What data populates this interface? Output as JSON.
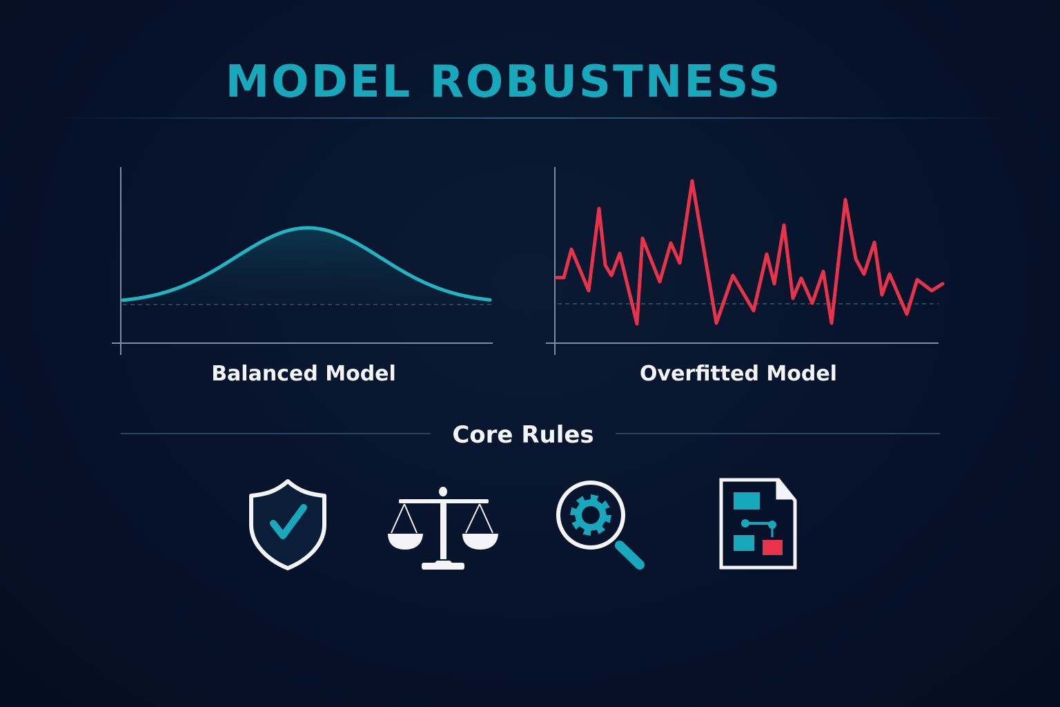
{
  "title": "MODEL ROBUSTNESS",
  "panels": [
    {
      "label": "Balanced Model",
      "curve": "smooth-bell",
      "color": "#1fb5c2"
    },
    {
      "label": "Overfitted Model",
      "curve": "jagged-noise",
      "color": "#e8344a"
    }
  ],
  "section": {
    "title": "Core Rules"
  },
  "icons": [
    {
      "name": "shield-check-icon"
    },
    {
      "name": "balance-scale-icon"
    },
    {
      "name": "magnifier-gear-icon"
    },
    {
      "name": "document-flowchart-icon"
    }
  ],
  "colors": {
    "accent": "#17a9bb",
    "alert": "#e8344a",
    "background": "#06122a"
  }
}
